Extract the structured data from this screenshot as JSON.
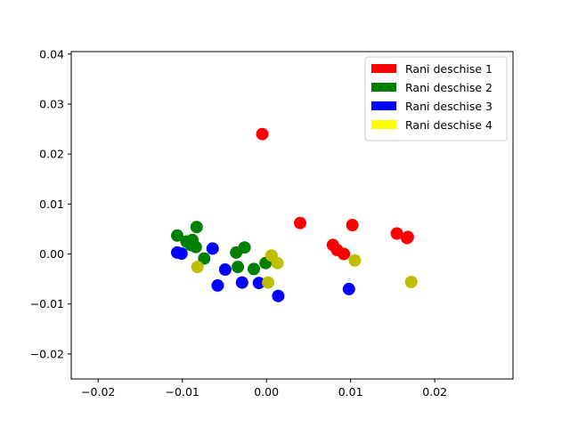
{
  "chart_data": {
    "type": "scatter",
    "title": "",
    "xlabel": "",
    "ylabel": "",
    "xlim": [
      -0.0232,
      0.0293
    ],
    "ylim": [
      -0.025,
      0.0405
    ],
    "xticks": [
      -0.02,
      -0.01,
      0.0,
      0.01,
      0.02
    ],
    "xtick_labels": [
      "−0.02",
      "−0.01",
      "0.00",
      "0.01",
      "0.02"
    ],
    "yticks": [
      -0.02,
      -0.01,
      0.0,
      0.01,
      0.02,
      0.03,
      0.04
    ],
    "ytick_labels": [
      "−0.02",
      "−0.01",
      "0.00",
      "0.01",
      "0.02",
      "0.03",
      "0.04"
    ],
    "grid": false,
    "legend_position": "top-right",
    "series": [
      {
        "name": "Rani deschise 1",
        "color": "#ff0000",
        "legend_color": "#ff0000",
        "points": [
          [
            -0.0005,
            0.024
          ],
          [
            0.004,
            0.0062
          ],
          [
            0.0079,
            0.0018
          ],
          [
            0.0084,
            0.0008
          ],
          [
            0.0092,
            0.0
          ],
          [
            0.0102,
            0.0058
          ],
          [
            0.0155,
            0.0041
          ],
          [
            0.0167,
            0.0032
          ],
          [
            0.0168,
            0.0034
          ]
        ]
      },
      {
        "name": "Rani deschise 2",
        "color": "#008000",
        "legend_color": "#008000",
        "points": [
          [
            -0.0106,
            0.0037
          ],
          [
            -0.0095,
            0.0025
          ],
          [
            -0.009,
            0.0018
          ],
          [
            -0.0088,
            0.0028
          ],
          [
            -0.0084,
            0.0014
          ],
          [
            -0.0083,
            0.0054
          ],
          [
            -0.0074,
            -0.0009
          ],
          [
            -0.0036,
            0.0003
          ],
          [
            -0.0026,
            0.0013
          ],
          [
            -0.0034,
            -0.0026
          ],
          [
            -0.0015,
            -0.003
          ],
          [
            -0.0001,
            -0.0018
          ]
        ]
      },
      {
        "name": "Rani deschise 3",
        "color": "#0000ff",
        "legend_color": "#0000ff",
        "points": [
          [
            -0.0106,
            0.0003
          ],
          [
            -0.0101,
            0.0001
          ],
          [
            -0.0064,
            0.0011
          ],
          [
            -0.0058,
            -0.0063
          ],
          [
            -0.0049,
            -0.0031
          ],
          [
            -0.0029,
            -0.0057
          ],
          [
            -0.0009,
            -0.0058
          ],
          [
            0.0014,
            -0.0084
          ],
          [
            0.0098,
            -0.007
          ]
        ]
      },
      {
        "name": "Rani deschise 4",
        "color": "#bfbf00",
        "legend_color": "#ffff00",
        "points": [
          [
            -0.0082,
            -0.0026
          ],
          [
            0.0002,
            -0.0057
          ],
          [
            0.0006,
            -0.0003
          ],
          [
            0.0013,
            -0.0018
          ],
          [
            0.0105,
            -0.0013
          ],
          [
            0.0172,
            -0.0056
          ]
        ]
      }
    ]
  }
}
